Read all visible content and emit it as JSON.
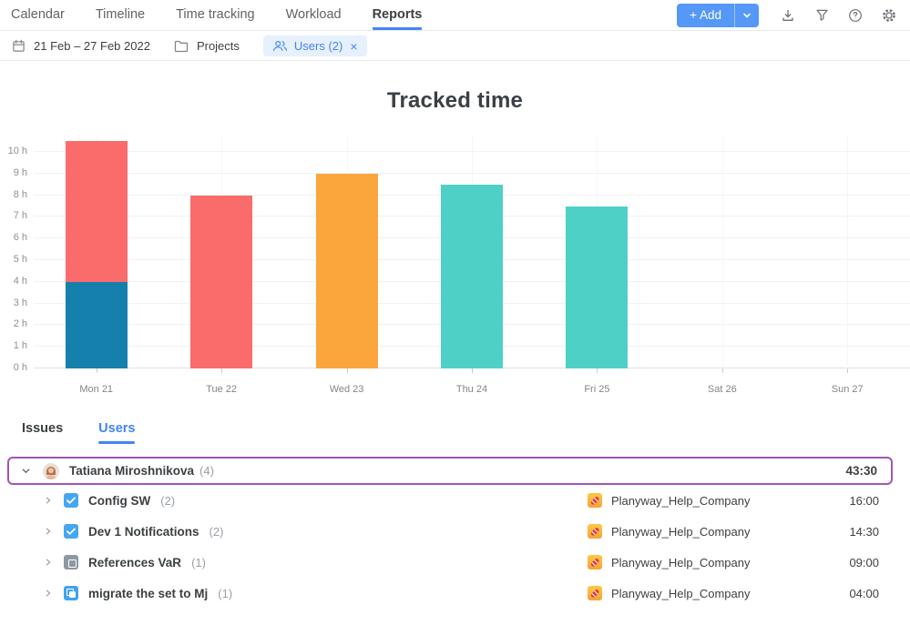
{
  "nav": {
    "items": [
      "Calendar",
      "Timeline",
      "Time tracking",
      "Workload",
      "Reports"
    ],
    "active": "Reports"
  },
  "toolbar": {
    "add_label": "+ Add"
  },
  "filters": {
    "date_range": "21 Feb – 27 Feb 2022",
    "projects_label": "Projects",
    "users_chip_label": "Users (2)",
    "users_chip_close": "×"
  },
  "chart_data": {
    "type": "bar",
    "stacked": true,
    "title": "Tracked time",
    "categories": [
      "Mon 21",
      "Tue 22",
      "Wed 23",
      "Thu 24",
      "Fri 25",
      "Sat 26",
      "Sun 27"
    ],
    "bars": [
      {
        "category": "Mon 21",
        "total_hours": 10.5,
        "segments": [
          {
            "name": "segment-blue",
            "color": "#1580ac",
            "hours": 4
          },
          {
            "name": "segment-coral",
            "color": "#fa6b6b",
            "hours": 6.5
          }
        ]
      },
      {
        "category": "Tue 22",
        "total_hours": 8,
        "segments": [
          {
            "name": "segment-coral",
            "color": "#fa6b6b",
            "hours": 8
          }
        ]
      },
      {
        "category": "Wed 23",
        "total_hours": 9,
        "segments": [
          {
            "name": "segment-orange",
            "color": "#faa63c",
            "hours": 9
          }
        ]
      },
      {
        "category": "Thu 24",
        "total_hours": 8.5,
        "segments": [
          {
            "name": "segment-teal",
            "color": "#4fd0c7",
            "hours": 8.5
          }
        ]
      },
      {
        "category": "Fri 25",
        "total_hours": 7.5,
        "segments": [
          {
            "name": "segment-teal",
            "color": "#4fd0c7",
            "hours": 7.5
          }
        ]
      },
      {
        "category": "Sat 26",
        "total_hours": 0,
        "segments": []
      },
      {
        "category": "Sun 27",
        "total_hours": 0,
        "segments": []
      }
    ],
    "y_axis": {
      "ticks": [
        "0 h",
        "1 h",
        "2 h",
        "3 h",
        "4 h",
        "5 h",
        "6 h",
        "7 h",
        "8 h",
        "9 h",
        "10 h"
      ],
      "min": 0,
      "max": 10,
      "headroom": 0.7
    },
    "grid": true,
    "legend": "none"
  },
  "tabs": {
    "issues_label": "Issues",
    "users_label": "Users",
    "active": "Users"
  },
  "report": {
    "user_row": {
      "name": "Tatiana Miroshnikova",
      "count": "(4)",
      "total": "43:30"
    },
    "tasks": [
      {
        "label": "Config SW",
        "count": "(2)",
        "icon": "checkbox",
        "project": "Planyway_Help_Company",
        "time": "16:00"
      },
      {
        "label": "Dev 1 Notifications",
        "count": "(2)",
        "icon": "checkbox",
        "project": "Planyway_Help_Company",
        "time": "14:30"
      },
      {
        "label": "References VaR",
        "count": "(1)",
        "icon": "status-gray",
        "project": "Planyway_Help_Company",
        "time": "09:00"
      },
      {
        "label": "migrate the set to Mj",
        "count": "(1)",
        "icon": "copy-blue",
        "project": "Planyway_Help_Company",
        "time": "04:00"
      }
    ]
  },
  "colors": {
    "accent_blue": "#4285f4",
    "add_button": "#5598f7",
    "selected_row_border": "#a155b4",
    "bar_blue": "#1580ac",
    "bar_coral": "#fa6b6b",
    "bar_orange": "#faa63c",
    "bar_teal": "#4fd0c7",
    "checkbox_blue": "#45a7f0",
    "planyway_amber": "#fbb040"
  }
}
